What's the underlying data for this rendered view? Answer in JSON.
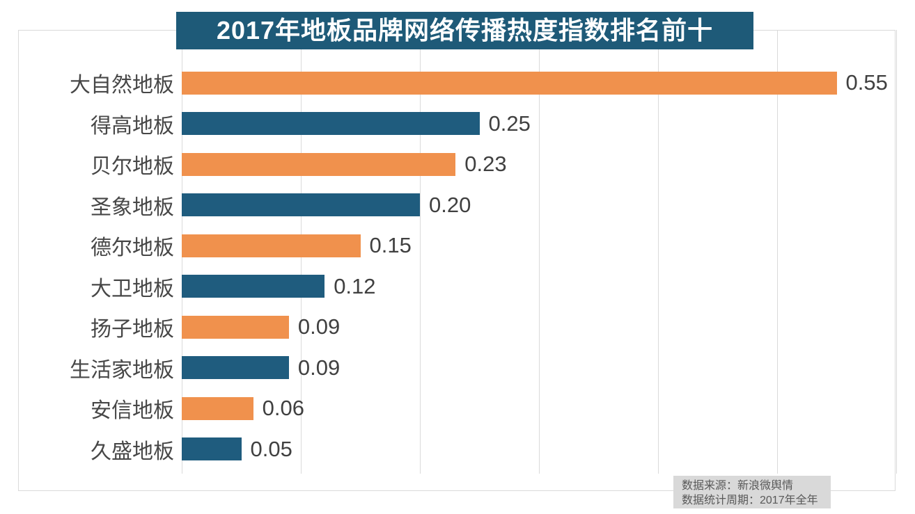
{
  "chart_data": {
    "type": "bar",
    "orientation": "horizontal",
    "title": "2017年地板品牌网络传播热度指数排名前十",
    "categories": [
      "大自然地板",
      "得高地板",
      "贝尔地板",
      "圣象地板",
      "德尔地板",
      "大卫地板",
      "扬子地板",
      "生活家地板",
      "安信地板",
      "久盛地板"
    ],
    "values": [
      0.55,
      0.25,
      0.23,
      0.2,
      0.15,
      0.12,
      0.09,
      0.09,
      0.06,
      0.05
    ],
    "value_labels": [
      "0.55",
      "0.25",
      "0.23",
      "0.20",
      "0.15",
      "0.12",
      "0.09",
      "0.09",
      "0.06",
      "0.05"
    ],
    "xlim": [
      0,
      0.6
    ],
    "gridline_interval": 0.1,
    "grid": true,
    "legend": "none",
    "colors": {
      "bar_odd_rank": "#F0914D",
      "bar_even_rank": "#1F5C7E",
      "title_background": "#1E5A78",
      "title_text": "#FFFFFF",
      "gridline": "#DADADA",
      "category_text": "#474747",
      "value_text": "#404040"
    }
  },
  "footer": {
    "background": "#D9D9D9",
    "source_line1": "数据来源：新浪微舆情",
    "source_line2": "数据统计周期：2017年全年"
  }
}
